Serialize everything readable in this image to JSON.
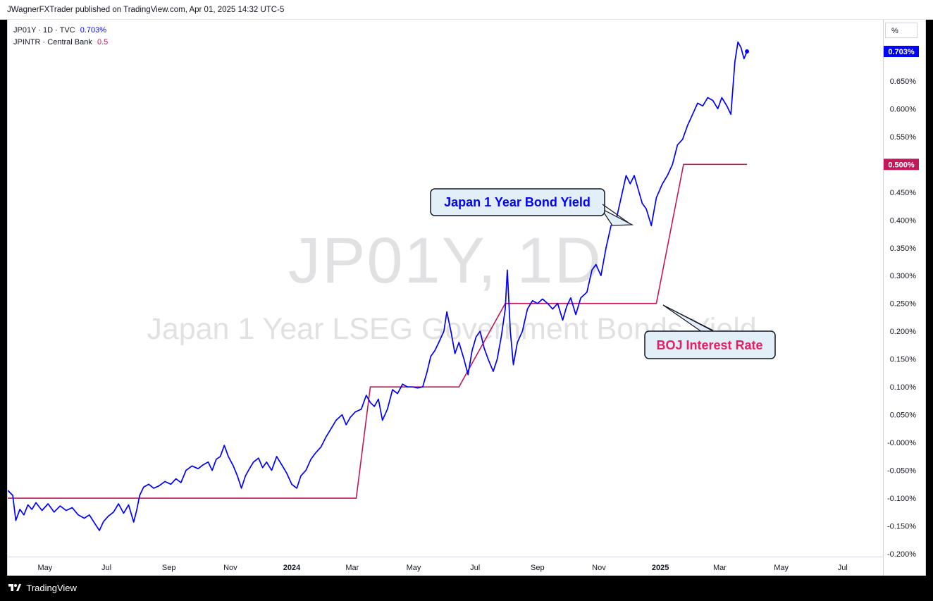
{
  "header": {
    "publisher": "JWagnerFXTrader published on TradingView.com, Apr 01, 2025 14:32 UTC-5"
  },
  "legend": {
    "line1_label": "JP01Y · 1D · TVC",
    "line1_value": "0.703%",
    "line2_label": "JPINTR · Central Bank",
    "line2_value": "0.5"
  },
  "watermark": {
    "symbol": "JP01Y, 1D",
    "description": "Japan 1 Year LSEG Government Bonds Yield"
  },
  "axis": {
    "unit_button": "%"
  },
  "footer": {
    "brand": "TradingView"
  },
  "annotations": [
    {
      "id": "yield",
      "text": "Japan 1 Year Bond Yield",
      "color": "#0000ff"
    },
    {
      "id": "boj",
      "text": "BOJ Interest Rate",
      "color": "#e91e63"
    }
  ],
  "chart_data": {
    "type": "line",
    "colors": {
      "yield": "#0000ff",
      "rate": "#c2185b"
    },
    "y_ticks": [
      "0.650%",
      "0.600%",
      "0.550%",
      "0.500%",
      "0.450%",
      "0.400%",
      "0.350%",
      "0.300%",
      "0.250%",
      "0.200%",
      "0.150%",
      "0.100%",
      "0.050%",
      "-0.000%",
      "-0.050%",
      "-0.100%",
      "-0.150%",
      "-0.200%"
    ],
    "x_ticks": [
      {
        "label": "May",
        "date": "2023-05-01",
        "bold": false
      },
      {
        "label": "Jul",
        "date": "2023-07-01",
        "bold": false
      },
      {
        "label": "Sep",
        "date": "2023-09-01",
        "bold": false
      },
      {
        "label": "Nov",
        "date": "2023-11-01",
        "bold": false
      },
      {
        "label": "2024",
        "date": "2024-01-01",
        "bold": true
      },
      {
        "label": "Mar",
        "date": "2024-03-01",
        "bold": false
      },
      {
        "label": "May",
        "date": "2024-05-01",
        "bold": false
      },
      {
        "label": "Jul",
        "date": "2024-07-01",
        "bold": false
      },
      {
        "label": "Sep",
        "date": "2024-09-01",
        "bold": false
      },
      {
        "label": "Nov",
        "date": "2024-11-01",
        "bold": false
      },
      {
        "label": "2025",
        "date": "2025-01-01",
        "bold": true
      },
      {
        "label": "Mar",
        "date": "2025-03-01",
        "bold": false
      },
      {
        "label": "May",
        "date": "2025-05-01",
        "bold": false
      },
      {
        "label": "Jul",
        "date": "2025-07-01",
        "bold": false
      }
    ],
    "ylim": [
      -0.205,
      0.76
    ],
    "xlim": [
      "2023-03-25",
      "2025-08-10"
    ],
    "series": [
      {
        "name": "JP01Y · 1D · TVC",
        "color": "#0000ff",
        "last_value_label": "0.703%",
        "points": [
          [
            "2023-03-25",
            -0.086
          ],
          [
            "2023-03-30",
            -0.095
          ],
          [
            "2023-04-02",
            -0.14
          ],
          [
            "2023-04-06",
            -0.12
          ],
          [
            "2023-04-10",
            -0.13
          ],
          [
            "2023-04-14",
            -0.112
          ],
          [
            "2023-04-18",
            -0.12
          ],
          [
            "2023-04-22",
            -0.108
          ],
          [
            "2023-04-28",
            -0.122
          ],
          [
            "2023-05-04",
            -0.11
          ],
          [
            "2023-05-10",
            -0.125
          ],
          [
            "2023-05-16",
            -0.114
          ],
          [
            "2023-05-22",
            -0.122
          ],
          [
            "2023-05-28",
            -0.117
          ],
          [
            "2023-06-03",
            -0.13
          ],
          [
            "2023-06-09",
            -0.136
          ],
          [
            "2023-06-14",
            -0.13
          ],
          [
            "2023-06-20",
            -0.147
          ],
          [
            "2023-06-24",
            -0.158
          ],
          [
            "2023-06-28",
            -0.142
          ],
          [
            "2023-07-03",
            -0.132
          ],
          [
            "2023-07-08",
            -0.125
          ],
          [
            "2023-07-13",
            -0.11
          ],
          [
            "2023-07-18",
            -0.127
          ],
          [
            "2023-07-23",
            -0.112
          ],
          [
            "2023-07-28",
            -0.143
          ],
          [
            "2023-07-31",
            -0.122
          ],
          [
            "2023-08-03",
            -0.095
          ],
          [
            "2023-08-07",
            -0.08
          ],
          [
            "2023-08-12",
            -0.075
          ],
          [
            "2023-08-17",
            -0.082
          ],
          [
            "2023-08-22",
            -0.078
          ],
          [
            "2023-08-28",
            -0.07
          ],
          [
            "2023-09-03",
            -0.075
          ],
          [
            "2023-09-08",
            -0.065
          ],
          [
            "2023-09-13",
            -0.072
          ],
          [
            "2023-09-18",
            -0.05
          ],
          [
            "2023-09-24",
            -0.042
          ],
          [
            "2023-09-30",
            -0.047
          ],
          [
            "2023-10-05",
            -0.04
          ],
          [
            "2023-10-10",
            -0.035
          ],
          [
            "2023-10-14",
            -0.05
          ],
          [
            "2023-10-18",
            -0.03
          ],
          [
            "2023-10-22",
            -0.025
          ],
          [
            "2023-10-26",
            -0.005
          ],
          [
            "2023-10-30",
            -0.025
          ],
          [
            "2023-11-04",
            -0.042
          ],
          [
            "2023-11-08",
            -0.06
          ],
          [
            "2023-11-12",
            -0.082
          ],
          [
            "2023-11-16",
            -0.06
          ],
          [
            "2023-11-20",
            -0.047
          ],
          [
            "2023-11-24",
            -0.035
          ],
          [
            "2023-11-29",
            -0.028
          ],
          [
            "2023-12-03",
            -0.045
          ],
          [
            "2023-12-07",
            -0.035
          ],
          [
            "2023-12-12",
            -0.05
          ],
          [
            "2023-12-17",
            -0.025
          ],
          [
            "2023-12-22",
            -0.04
          ],
          [
            "2023-12-27",
            -0.055
          ],
          [
            "2024-01-01",
            -0.075
          ],
          [
            "2024-01-06",
            -0.082
          ],
          [
            "2024-01-10",
            -0.06
          ],
          [
            "2024-01-15",
            -0.05
          ],
          [
            "2024-01-20",
            -0.03
          ],
          [
            "2024-01-25",
            -0.018
          ],
          [
            "2024-01-30",
            -0.008
          ],
          [
            "2024-02-04",
            0.01
          ],
          [
            "2024-02-09",
            0.025
          ],
          [
            "2024-02-14",
            0.04
          ],
          [
            "2024-02-20",
            0.05
          ],
          [
            "2024-02-24",
            0.032
          ],
          [
            "2024-02-28",
            0.045
          ],
          [
            "2024-03-04",
            0.055
          ],
          [
            "2024-03-10",
            0.06
          ],
          [
            "2024-03-15",
            0.085
          ],
          [
            "2024-03-19",
            0.072
          ],
          [
            "2024-03-23",
            0.065
          ],
          [
            "2024-03-27",
            0.078
          ],
          [
            "2024-03-31",
            0.04
          ],
          [
            "2024-04-05",
            0.06
          ],
          [
            "2024-04-10",
            0.095
          ],
          [
            "2024-04-15",
            0.088
          ],
          [
            "2024-04-20",
            0.105
          ],
          [
            "2024-04-25",
            0.1
          ],
          [
            "2024-04-30",
            0.1
          ],
          [
            "2024-05-05",
            0.098
          ],
          [
            "2024-05-10",
            0.1
          ],
          [
            "2024-05-14",
            0.125
          ],
          [
            "2024-05-18",
            0.155
          ],
          [
            "2024-05-22",
            0.165
          ],
          [
            "2024-05-26",
            0.18
          ],
          [
            "2024-05-31",
            0.2
          ],
          [
            "2024-06-03",
            0.235
          ],
          [
            "2024-06-07",
            0.2
          ],
          [
            "2024-06-11",
            0.16
          ],
          [
            "2024-06-15",
            0.18
          ],
          [
            "2024-06-20",
            0.15
          ],
          [
            "2024-06-24",
            0.122
          ],
          [
            "2024-06-28",
            0.165
          ],
          [
            "2024-07-02",
            0.19
          ],
          [
            "2024-07-06",
            0.2
          ],
          [
            "2024-07-10",
            0.17
          ],
          [
            "2024-07-14",
            0.15
          ],
          [
            "2024-07-19",
            0.128
          ],
          [
            "2024-07-23",
            0.15
          ],
          [
            "2024-07-27",
            0.19
          ],
          [
            "2024-07-31",
            0.24
          ],
          [
            "2024-08-02",
            0.31
          ],
          [
            "2024-08-05",
            0.2
          ],
          [
            "2024-08-08",
            0.14
          ],
          [
            "2024-08-12",
            0.18
          ],
          [
            "2024-08-17",
            0.2
          ],
          [
            "2024-08-22",
            0.24
          ],
          [
            "2024-08-27",
            0.255
          ],
          [
            "2024-09-01",
            0.25
          ],
          [
            "2024-09-06",
            0.258
          ],
          [
            "2024-09-11",
            0.25
          ],
          [
            "2024-09-16",
            0.24
          ],
          [
            "2024-09-21",
            0.25
          ],
          [
            "2024-09-26",
            0.22
          ],
          [
            "2024-09-30",
            0.245
          ],
          [
            "2024-10-04",
            0.26
          ],
          [
            "2024-10-09",
            0.23
          ],
          [
            "2024-10-14",
            0.26
          ],
          [
            "2024-10-20",
            0.27
          ],
          [
            "2024-10-25",
            0.31
          ],
          [
            "2024-10-29",
            0.32
          ],
          [
            "2024-11-03",
            0.3
          ],
          [
            "2024-11-08",
            0.35
          ],
          [
            "2024-11-13",
            0.39
          ],
          [
            "2024-11-18",
            0.4
          ],
          [
            "2024-11-23",
            0.44
          ],
          [
            "2024-11-28",
            0.48
          ],
          [
            "2024-12-02",
            0.465
          ],
          [
            "2024-12-06",
            0.48
          ],
          [
            "2024-12-10",
            0.455
          ],
          [
            "2024-12-14",
            0.43
          ],
          [
            "2024-12-18",
            0.42
          ],
          [
            "2024-12-23",
            0.39
          ],
          [
            "2024-12-28",
            0.44
          ],
          [
            "2025-01-03",
            0.465
          ],
          [
            "2025-01-08",
            0.48
          ],
          [
            "2025-01-13",
            0.5
          ],
          [
            "2025-01-18",
            0.535
          ],
          [
            "2025-01-23",
            0.545
          ],
          [
            "2025-01-28",
            0.57
          ],
          [
            "2025-02-02",
            0.59
          ],
          [
            "2025-02-07",
            0.61
          ],
          [
            "2025-02-12",
            0.605
          ],
          [
            "2025-02-17",
            0.62
          ],
          [
            "2025-02-22",
            0.615
          ],
          [
            "2025-02-27",
            0.6
          ],
          [
            "2025-03-03",
            0.62
          ],
          [
            "2025-03-08",
            0.605
          ],
          [
            "2025-03-12",
            0.59
          ],
          [
            "2025-03-16",
            0.685
          ],
          [
            "2025-03-19",
            0.72
          ],
          [
            "2025-03-22",
            0.71
          ],
          [
            "2025-03-25",
            0.69
          ],
          [
            "2025-03-28",
            0.703
          ]
        ]
      },
      {
        "name": "JPINTR · Central Bank",
        "color": "#c2185b",
        "last_value_label": "0.500%",
        "points": [
          [
            "2023-03-25",
            -0.1
          ],
          [
            "2024-03-05",
            -0.1
          ],
          [
            "2024-03-19",
            0.1
          ],
          [
            "2024-06-15",
            0.1
          ],
          [
            "2024-07-31",
            0.25
          ],
          [
            "2024-12-28",
            0.25
          ],
          [
            "2025-01-24",
            0.5
          ],
          [
            "2025-03-28",
            0.5
          ]
        ]
      }
    ]
  }
}
